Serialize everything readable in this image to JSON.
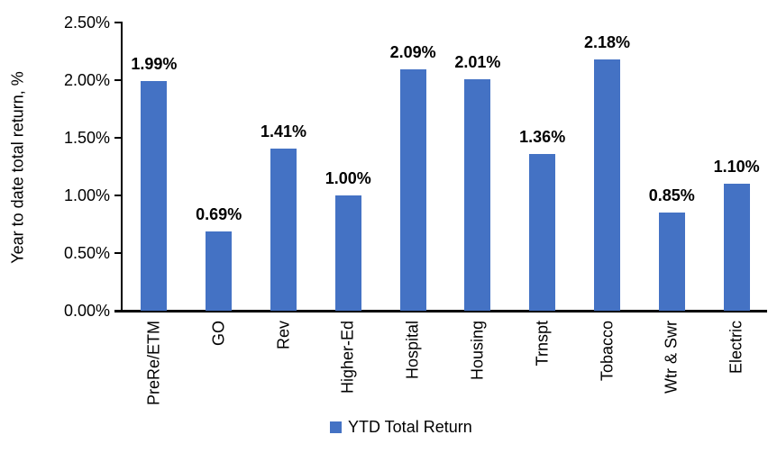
{
  "chart_data": {
    "type": "bar",
    "title": "",
    "categories": [
      "PreRe/ETM",
      "GO",
      "Rev",
      "Higher-Ed",
      "Hospital",
      "Housing",
      "Trnspt",
      "Tobacco",
      "Wtr & Swr",
      "Electric"
    ],
    "values": [
      1.99,
      0.69,
      1.41,
      1.0,
      2.09,
      2.01,
      1.36,
      2.18,
      0.85,
      1.1
    ],
    "value_labels": [
      "1.99%",
      "0.69%",
      "1.41%",
      "1.00%",
      "2.09%",
      "2.01%",
      "1.36%",
      "2.18%",
      "0.85%",
      "1.10%"
    ],
    "xlabel": "",
    "ylabel": "Year to date total return, %",
    "y_ticks": [
      "0.00%",
      "0.50%",
      "1.00%",
      "1.50%",
      "2.00%",
      "2.50%"
    ],
    "ylim": [
      0,
      2.5
    ],
    "grid": false,
    "bar_color": "#4472C4",
    "axis_color": "#000000",
    "text_color": "#000000",
    "legend_position": "bottom-center",
    "legend": [
      {
        "label": "YTD Total Return",
        "color": "#4472C4"
      }
    ]
  }
}
